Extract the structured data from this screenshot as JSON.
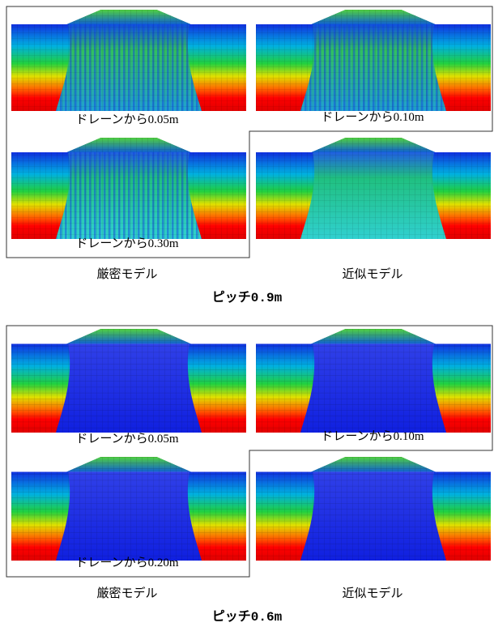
{
  "groups": [
    {
      "captions": [
        "ドレーンから0.05m",
        "ドレーンから0.10m",
        "ドレーンから0.30m"
      ],
      "exact_label": "厳密モデル",
      "approx_label": "近似モデル",
      "pitch_label": "ピッチ0.9m"
    },
    {
      "captions": [
        "ドレーンから0.05m",
        "ドレーンから0.10m",
        "ドレーンから0.20m"
      ],
      "exact_label": "厳密モデル",
      "approx_label": "近似モデル",
      "pitch_label": "ピッチ0.6m"
    }
  ]
}
